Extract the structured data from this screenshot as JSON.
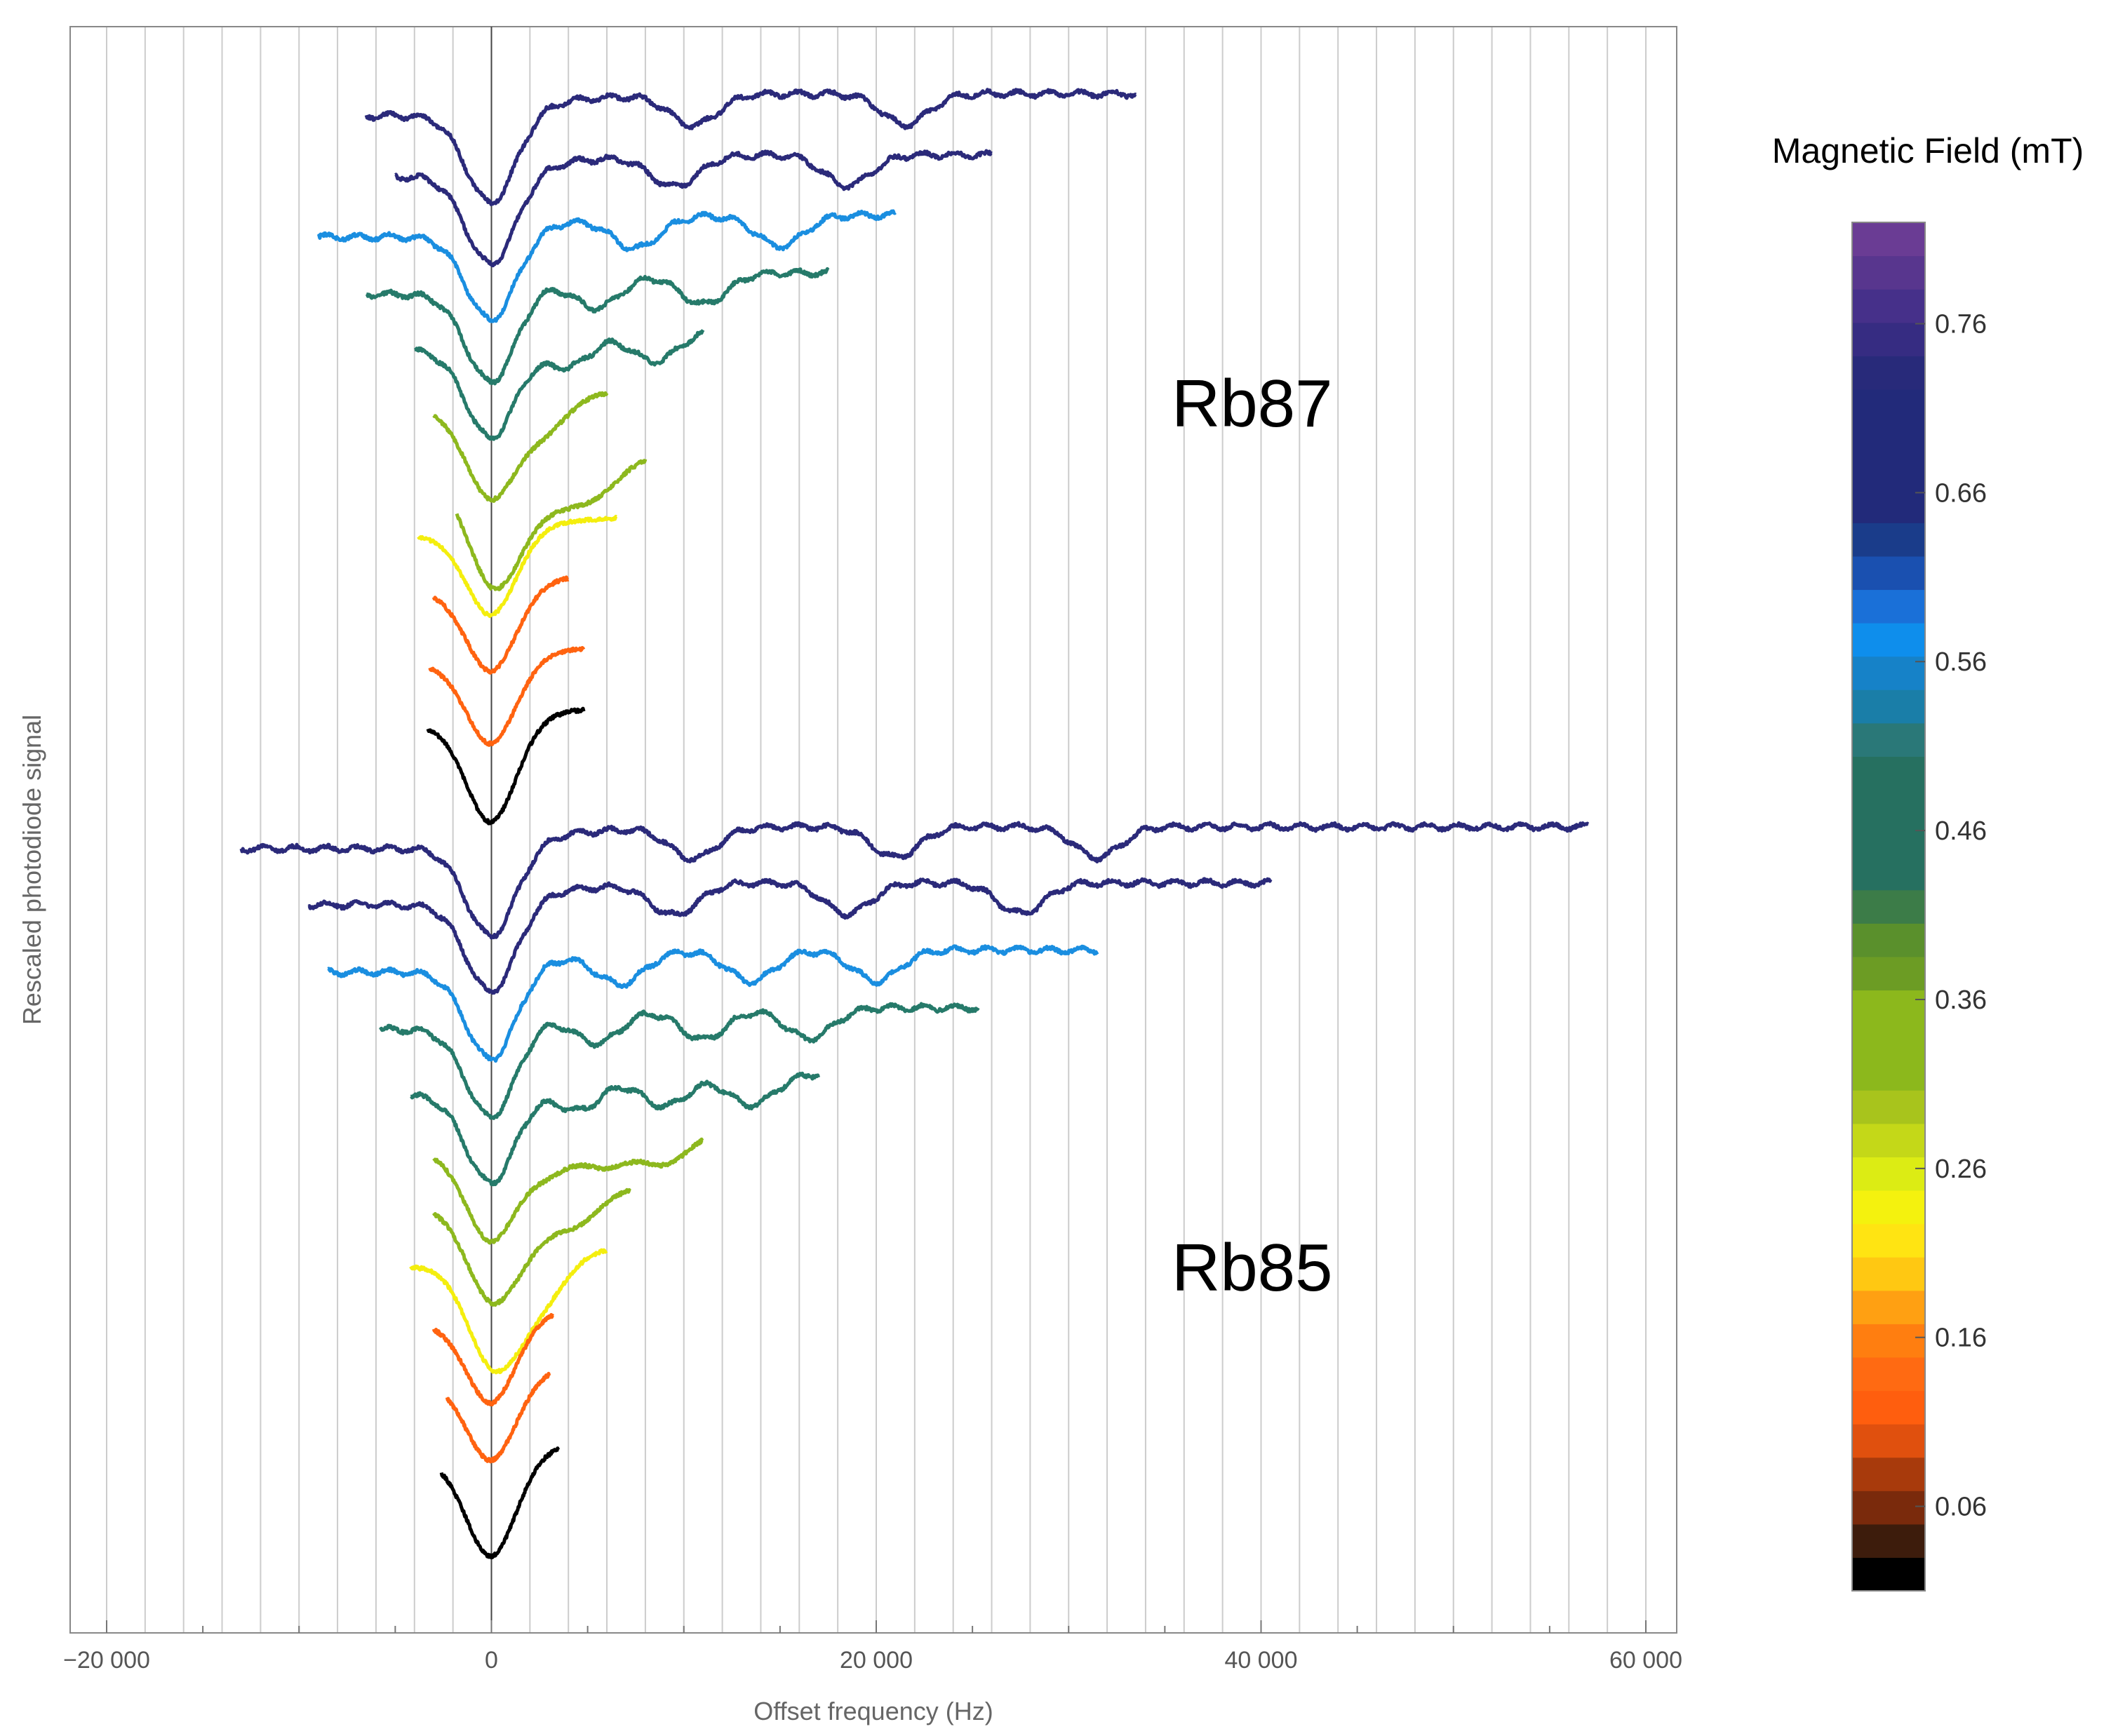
{
  "chart_data": {
    "type": "line",
    "xlabel": "Offset frequency (Hz)",
    "ylabel": "Rescaled photodiode signal",
    "xlim": [
      -20000,
      60000
    ],
    "x_ticks": [
      {
        "value": -20000,
        "label": "−20 000"
      },
      {
        "value": 0,
        "label": "0"
      },
      {
        "value": 20000,
        "label": "20 000"
      },
      {
        "value": 40000,
        "label": "40 000"
      },
      {
        "value": 60000,
        "label": "60 000"
      }
    ],
    "y_ticks_shown": false,
    "vertical_gridlines": "every 2000 Hz",
    "annotations": [
      "Rb87",
      "Rb85"
    ],
    "colorbar": {
      "title": "Magnetic Field (mT)",
      "range": [
        0.01,
        0.82
      ],
      "tick_labels": [
        "0.06",
        "0.16",
        "0.26",
        "0.36",
        "0.46",
        "0.56",
        "0.66",
        "0.76"
      ],
      "tick_values": [
        0.06,
        0.16,
        0.26,
        0.36,
        0.46,
        0.56,
        0.66,
        0.76
      ]
    },
    "groups": [
      {
        "label": "Rb87",
        "series": [
          {
            "field_mT": 0.75,
            "color": "#2b2a7a",
            "x_range": [
              -6500,
              33500
            ],
            "dips_hz": [
              0,
              10500,
              21500
            ],
            "dip_depth": 1.0
          },
          {
            "field_mT": 0.73,
            "color": "#2b2a7a",
            "x_range": [
              -5000,
              26000
            ],
            "dips_hz": [
              0,
              9500,
              18500
            ],
            "dip_depth": 1.0
          },
          {
            "field_mT": 0.59,
            "color": "#1a8ee0",
            "x_range": [
              -9000,
              21000
            ],
            "dips_hz": [
              0,
              7500,
              15000
            ],
            "dip_depth": 0.95
          },
          {
            "field_mT": 0.52,
            "color": "#267a6a",
            "x_range": [
              -6500,
              17500
            ],
            "dips_hz": [
              0,
              5500,
              11000
            ],
            "dip_depth": 1.0
          },
          {
            "field_mT": 0.48,
            "color": "#267a6a",
            "x_range": [
              -4000,
              11000
            ],
            "dips_hz": [
              0,
              4000,
              8500
            ],
            "dip_depth": 1.0
          },
          {
            "field_mT": 0.35,
            "color": "#8db81e",
            "x_range": [
              -3000,
              6000
            ],
            "dips_hz": [
              0,
              2800
            ],
            "dip_depth": 1.0
          },
          {
            "field_mT": 0.32,
            "color": "#8db81e",
            "x_range": [
              -1800,
              8000
            ],
            "dips_hz": [
              0,
              1500,
              3500,
              5500
            ],
            "dip_depth": 1.1
          },
          {
            "field_mT": 0.25,
            "color": "#f4ee0e",
            "x_range": [
              -3800,
              6500
            ],
            "dips_hz": [
              0
            ],
            "dip_depth": 0.9
          },
          {
            "field_mT": 0.15,
            "color": "#ff6310",
            "x_range": [
              -3000,
              4000
            ],
            "dips_hz": [
              0
            ],
            "dip_depth": 0.9
          },
          {
            "field_mT": 0.12,
            "color": "#ff6310",
            "x_range": [
              -3200,
              4800
            ],
            "dips_hz": [
              0
            ],
            "dip_depth": 0.9
          },
          {
            "field_mT": 0.02,
            "color": "#000000",
            "x_range": [
              -3300,
              4800
            ],
            "dips_hz": [
              0
            ],
            "dip_depth": 1.1
          }
        ]
      },
      {
        "label": "Rb85",
        "series": [
          {
            "field_mT": 0.75,
            "color": "#2b2a7a",
            "x_range": [
              -13000,
              57000
            ],
            "dips_hz": [
              0,
              10500,
              21000,
              31500
            ],
            "dip_depth": 1.0
          },
          {
            "field_mT": 0.73,
            "color": "#2b2a7a",
            "x_range": [
              -9500,
              40500
            ],
            "dips_hz": [
              0,
              9500,
              18500,
              27500
            ],
            "dip_depth": 1.0
          },
          {
            "field_mT": 0.59,
            "color": "#1a8ee0",
            "x_range": [
              -8500,
              31500
            ],
            "dips_hz": [
              0,
              6700,
              13500,
              20000
            ],
            "dip_depth": 1.0
          },
          {
            "field_mT": 0.52,
            "color": "#267a6a",
            "x_range": [
              -5800,
              25300
            ],
            "dips_hz": [
              0,
              5500,
              11000,
              16500
            ],
            "dip_depth": 1.0
          },
          {
            "field_mT": 0.48,
            "color": "#267a6a",
            "x_range": [
              -4200,
              17000
            ],
            "dips_hz": [
              0,
              4500,
              9000,
              13500
            ],
            "dip_depth": 1.0
          },
          {
            "field_mT": 0.35,
            "color": "#8db81e",
            "x_range": [
              -3000,
              11000
            ],
            "dips_hz": [
              0,
              3000,
              6000,
              9000
            ],
            "dip_depth": 1.0
          },
          {
            "field_mT": 0.33,
            "color": "#8db81e",
            "x_range": [
              -3000,
              7200
            ],
            "dips_hz": [
              0,
              2000,
              4400
            ],
            "dip_depth": 1.0
          },
          {
            "field_mT": 0.25,
            "color": "#f4ee0e",
            "x_range": [
              -4200,
              6000
            ],
            "dips_hz": [
              0,
              1500,
              3000
            ],
            "dip_depth": 1.0
          },
          {
            "field_mT": 0.15,
            "color": "#ff6310",
            "x_range": [
              -3000,
              3200
            ],
            "dips_hz": [
              0
            ],
            "dip_depth": 0.9
          },
          {
            "field_mT": 0.12,
            "color": "#ff6310",
            "x_range": [
              -2300,
              3000
            ],
            "dips_hz": [
              0
            ],
            "dip_depth": 0.9
          },
          {
            "field_mT": 0.02,
            "color": "#000000",
            "x_range": [
              -2600,
              3500
            ],
            "dips_hz": [
              0
            ],
            "dip_depth": 1.1
          }
        ]
      }
    ],
    "colorbar_colors": [
      "#000000",
      "#3d1c0c",
      "#7a2a0c",
      "#a83a0c",
      "#e0500e",
      "#ff5e0e",
      "#ff6a12",
      "#ff7e10",
      "#ffa012",
      "#ffc812",
      "#ffe412",
      "#f4f20e",
      "#dcec14",
      "#c4d818",
      "#a8c41c",
      "#8cb81c",
      "#8cb81c",
      "#8cb81c",
      "#6c9c24",
      "#5a902c",
      "#3c7c48",
      "#267060",
      "#267060",
      "#267060",
      "#267060",
      "#2a7878",
      "#1a7ea8",
      "#1682c8",
      "#0e8eec",
      "#1a70d8",
      "#1a50b0",
      "#1a3c8a",
      "#222a7a",
      "#222a7a",
      "#222a7a",
      "#222a7a",
      "#282a7a",
      "#362c82",
      "#46308a",
      "#58368e",
      "#6a3c94"
    ]
  }
}
